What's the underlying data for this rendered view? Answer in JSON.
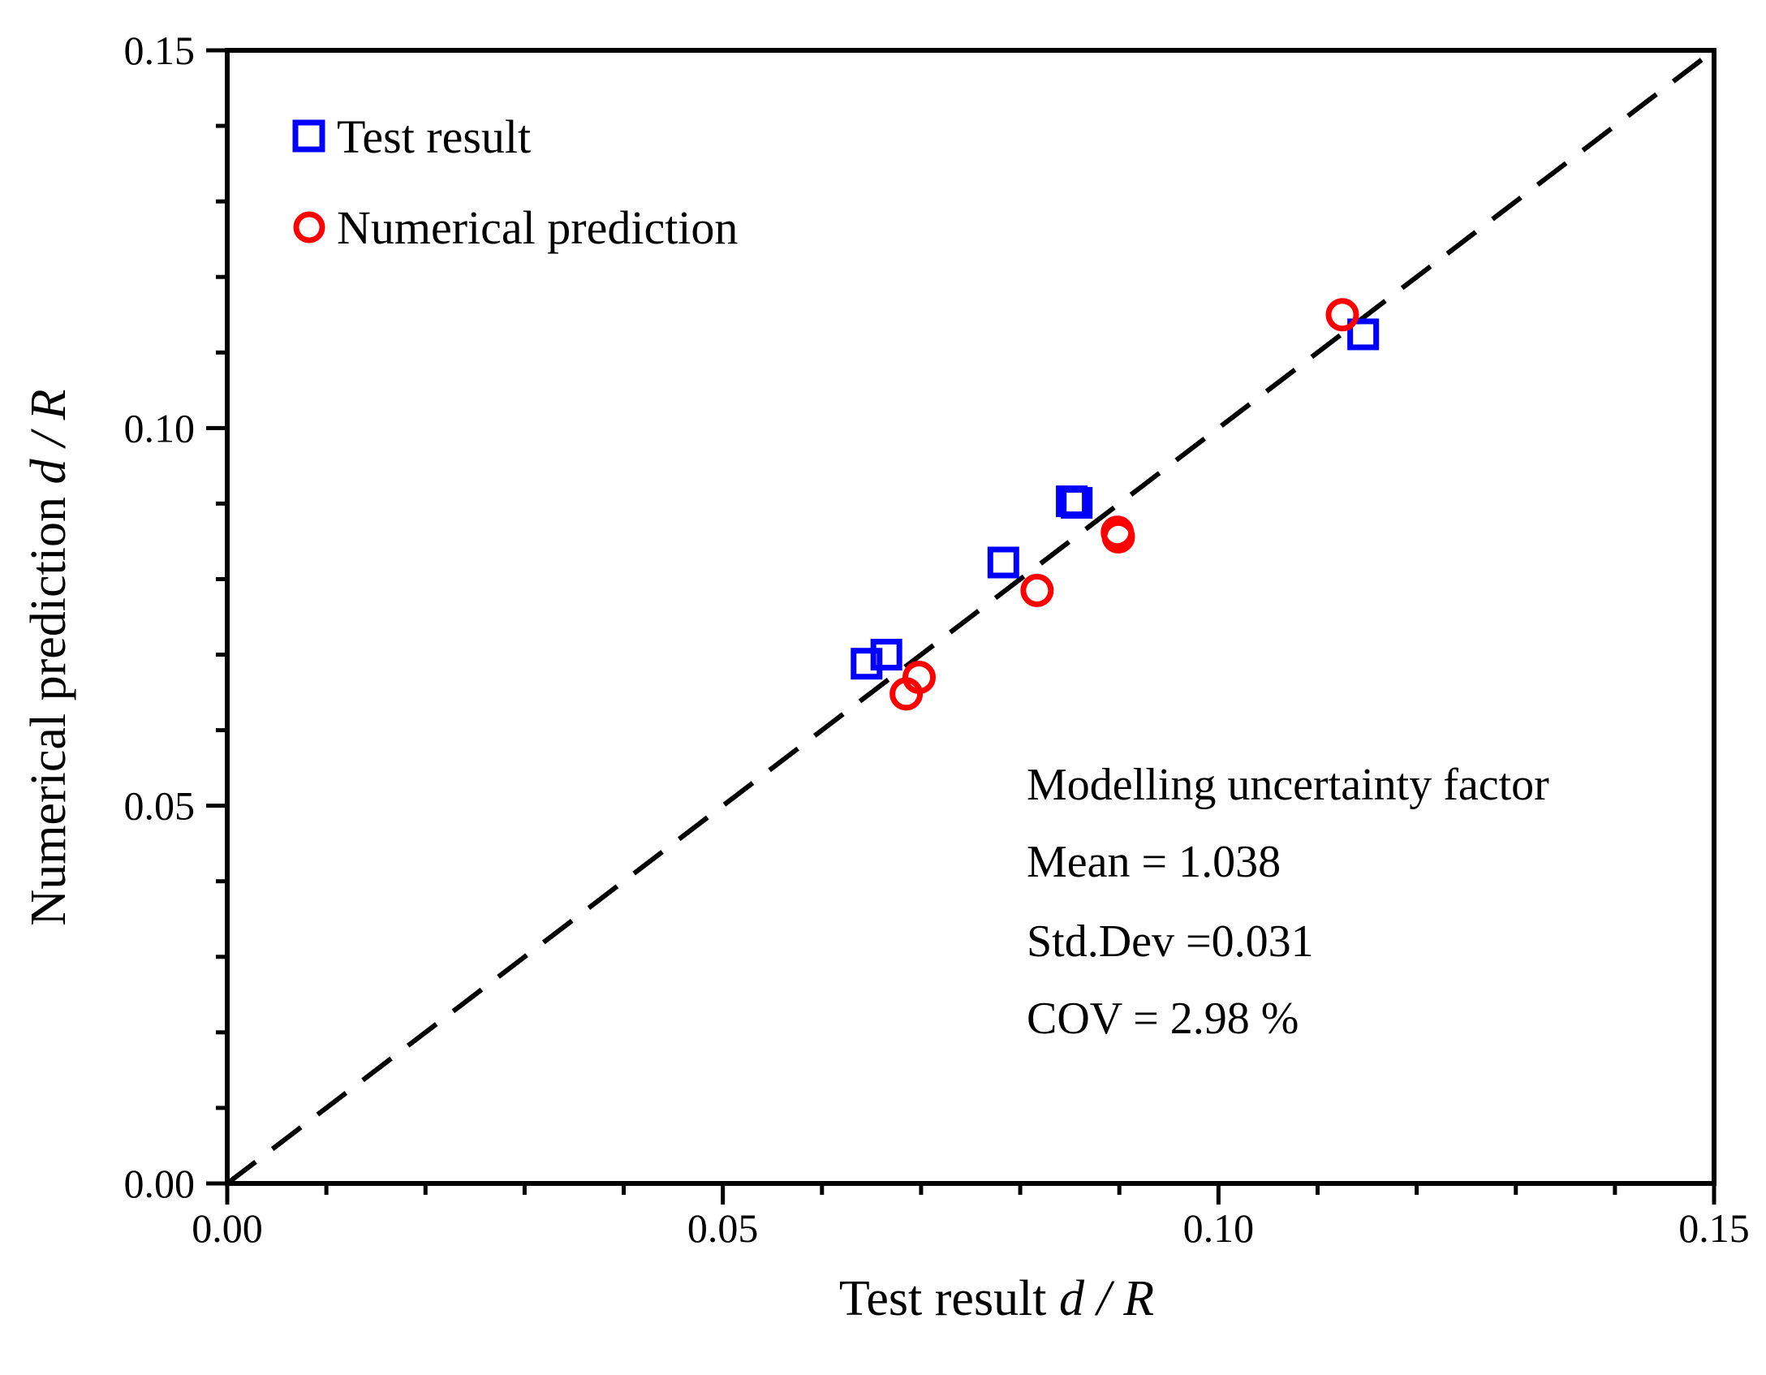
{
  "chart_data": {
    "type": "scatter",
    "xlabel": "Test result",
    "xlabel_var": "d / R",
    "ylabel": "Numerical prediction",
    "ylabel_var": "d / R",
    "xlim": [
      0,
      0.15
    ],
    "ylim": [
      0,
      0.15
    ],
    "x_ticks": [
      "0.00",
      "0.05",
      "0.10",
      "0.15"
    ],
    "y_ticks": [
      "0.00",
      "0.05",
      "0.10",
      "0.15"
    ],
    "x_tick_values": [
      0,
      0.05,
      0.1,
      0.15
    ],
    "y_tick_values": [
      0,
      0.05,
      0.1,
      0.15
    ],
    "minor_tick_step": 0.01,
    "grid": false,
    "legend_position": "top-left",
    "reference_line": {
      "name": "1:1 line",
      "style": "dashed",
      "from": [
        0,
        0
      ],
      "to": [
        0.15,
        0.15
      ]
    },
    "series": [
      {
        "name": "Test result",
        "marker": "square",
        "color": "#0000ff",
        "points": [
          {
            "x": 0.0645,
            "y": 0.0688
          },
          {
            "x": 0.0665,
            "y": 0.07
          },
          {
            "x": 0.0783,
            "y": 0.0822
          },
          {
            "x": 0.0852,
            "y": 0.0903
          },
          {
            "x": 0.0857,
            "y": 0.0901
          },
          {
            "x": 0.1146,
            "y": 0.1124
          }
        ]
      },
      {
        "name": "Numerical prediction",
        "marker": "circle",
        "color": "#ff0000",
        "points": [
          {
            "x": 0.0685,
            "y": 0.0648
          },
          {
            "x": 0.0698,
            "y": 0.067
          },
          {
            "x": 0.0817,
            "y": 0.0785
          },
          {
            "x": 0.0898,
            "y": 0.0862
          },
          {
            "x": 0.0899,
            "y": 0.0856
          },
          {
            "x": 0.1125,
            "y": 0.115
          }
        ]
      }
    ],
    "annotations": [
      "Modelling uncertainty factor",
      "Mean = 1.038",
      "Std.Dev =0.031",
      "COV = 2.98 %"
    ]
  }
}
